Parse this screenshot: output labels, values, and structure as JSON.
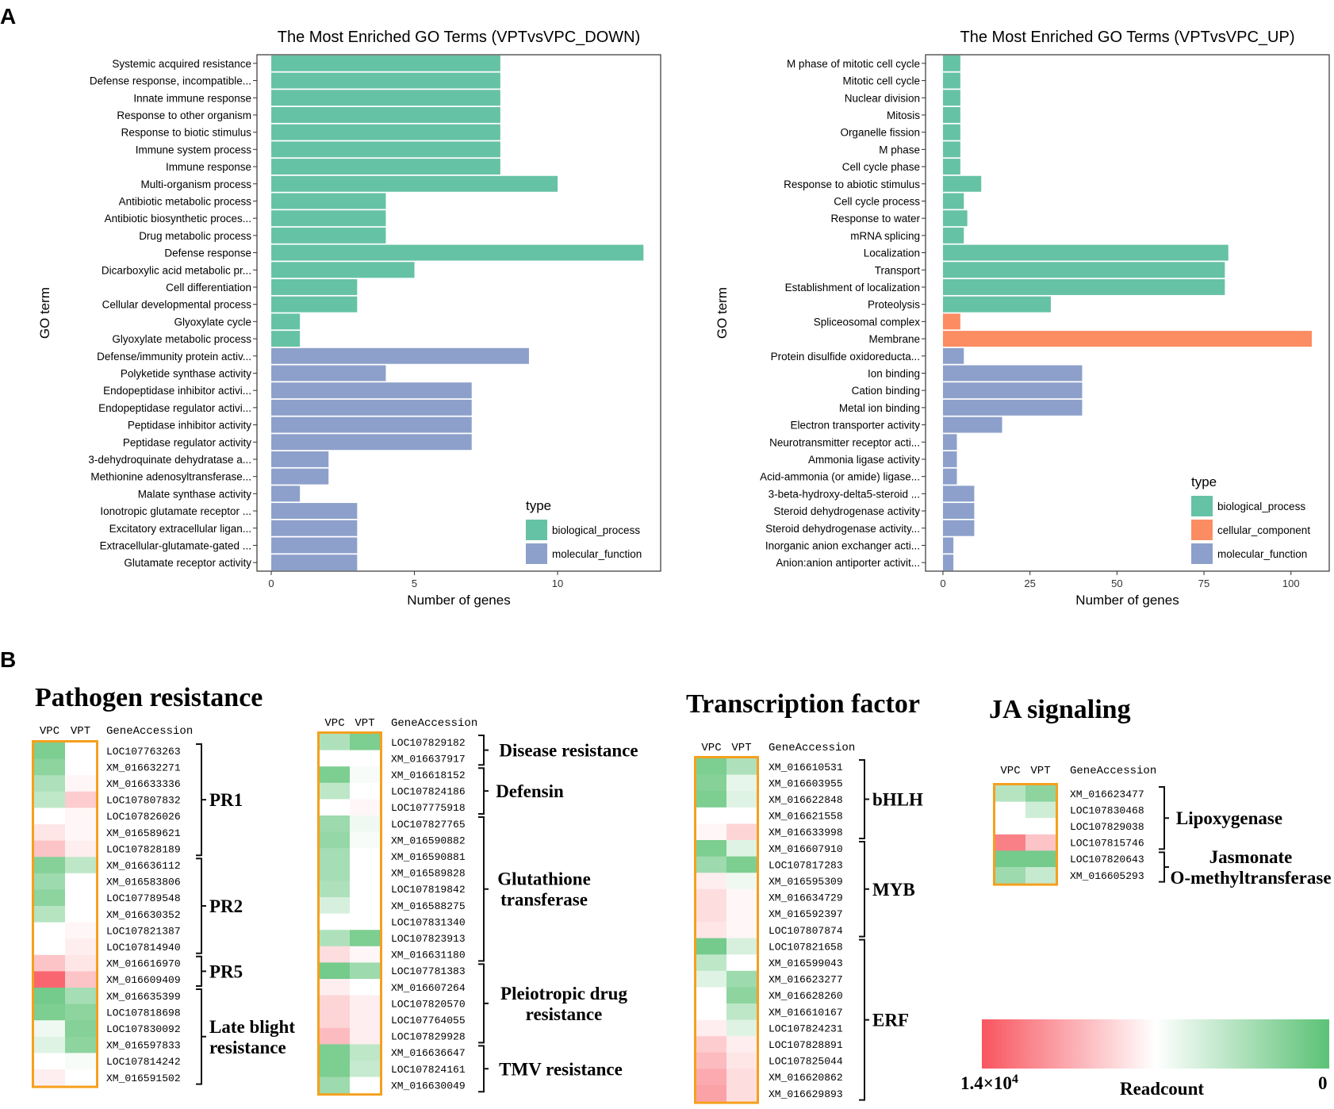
{
  "panel_labels": {
    "a": "A",
    "b": "B"
  },
  "colors": {
    "biological_process": "#66c2a5",
    "cellular_component": "#fc8d62",
    "molecular_function": "#8da0cb",
    "heat_high": "#f8555f",
    "heat_mid": "#ffffff",
    "heat_low": "#5cc276",
    "box": "#f5a01e"
  },
  "chart_data": [
    {
      "type": "bar",
      "orientation": "horizontal",
      "title": "The Most Enriched GO Terms (VPTvsVPC_DOWN)",
      "xlabel": "Number of genes",
      "ylabel": "GO term",
      "xlim": [
        -0.5,
        13.6
      ],
      "xticks": [
        0,
        5,
        10
      ],
      "legend": {
        "title": "type",
        "placement": "bottom-right",
        "entries": [
          "biological_process",
          "molecular_function"
        ]
      },
      "categories": [
        "Systemic acquired resistance",
        "Defense response, incompatible...",
        "Innate immune response",
        "Response to other organism",
        "Response to biotic stimulus",
        "Immune system process",
        "Immune response",
        "Multi-organism process",
        "Antibiotic metabolic process",
        "Antibiotic biosynthetic proces...",
        "Drug metabolic process",
        "Defense response",
        "Dicarboxylic acid metabolic pr...",
        "Cell differentiation",
        "Cellular developmental process",
        "Glyoxylate cycle",
        "Glyoxylate metabolic process",
        "Defense/immunity protein activ...",
        "Polyketide synthase activity",
        "Endopeptidase inhibitor activi...",
        "Endopeptidase regulator activi...",
        "Peptidase inhibitor activity",
        "Peptidase regulator activity",
        "3-dehydroquinate dehydratase a...",
        "Methionine adenosyltransferase...",
        "Malate synthase activity",
        "Ionotropic glutamate receptor ...",
        "Excitatory extracellular ligan...",
        "Extracellular-glutamate-gated ...",
        "Glutamate receptor activity"
      ],
      "values": [
        8,
        8,
        8,
        8,
        8,
        8,
        8,
        10,
        4,
        4,
        4,
        13,
        5,
        3,
        3,
        1,
        1,
        9,
        4,
        7,
        7,
        7,
        7,
        2,
        2,
        1,
        3,
        3,
        3,
        3
      ],
      "types": [
        "biological_process",
        "biological_process",
        "biological_process",
        "biological_process",
        "biological_process",
        "biological_process",
        "biological_process",
        "biological_process",
        "biological_process",
        "biological_process",
        "biological_process",
        "biological_process",
        "biological_process",
        "biological_process",
        "biological_process",
        "biological_process",
        "biological_process",
        "molecular_function",
        "molecular_function",
        "molecular_function",
        "molecular_function",
        "molecular_function",
        "molecular_function",
        "molecular_function",
        "molecular_function",
        "molecular_function",
        "molecular_function",
        "molecular_function",
        "molecular_function",
        "molecular_function"
      ]
    },
    {
      "type": "bar",
      "orientation": "horizontal",
      "title": "The Most Enriched GO Terms (VPTvsVPC_UP)",
      "xlabel": "Number of genes",
      "ylabel": "GO term",
      "xlim": [
        -5,
        111
      ],
      "xticks": [
        0,
        25,
        50,
        75,
        100
      ],
      "legend": {
        "title": "type",
        "placement": "bottom-right",
        "entries": [
          "biological_process",
          "cellular_component",
          "molecular_function"
        ]
      },
      "categories": [
        "M phase of mitotic cell cycle",
        "Mitotic cell cycle",
        "Nuclear division",
        "Mitosis",
        "Organelle fission",
        "M phase",
        "Cell cycle phase",
        "Response to abiotic stimulus",
        "Cell cycle process",
        "Response to water",
        "mRNA splicing",
        "Localization",
        "Transport",
        "Establishment of localization",
        "Proteolysis",
        "Spliceosomal complex",
        "Membrane",
        "Protein disulfide oxidoreducta...",
        "Ion binding",
        "Cation binding",
        "Metal ion binding",
        "Electron transporter activity",
        "Neurotransmitter receptor acti...",
        "Ammonia ligase activity",
        "Acid-ammonia (or amide) ligase...",
        "3-beta-hydroxy-delta5-steroid ...",
        "Steroid dehydrogenase activity",
        "Steroid dehydrogenase activity...",
        "Inorganic anion exchanger acti...",
        "Anion:anion antiporter activit..."
      ],
      "values": [
        5,
        5,
        5,
        5,
        5,
        5,
        5,
        11,
        6,
        7,
        6,
        82,
        81,
        81,
        31,
        5,
        106,
        6,
        40,
        40,
        40,
        17,
        4,
        4,
        4,
        9,
        9,
        9,
        3,
        3
      ],
      "types": [
        "biological_process",
        "biological_process",
        "biological_process",
        "biological_process",
        "biological_process",
        "biological_process",
        "biological_process",
        "biological_process",
        "biological_process",
        "biological_process",
        "biological_process",
        "biological_process",
        "biological_process",
        "biological_process",
        "biological_process",
        "cellular_component",
        "cellular_component",
        "molecular_function",
        "molecular_function",
        "molecular_function",
        "molecular_function",
        "molecular_function",
        "molecular_function",
        "molecular_function",
        "molecular_function",
        "molecular_function",
        "molecular_function",
        "molecular_function",
        "molecular_function",
        "molecular_function"
      ]
    },
    {
      "type": "heatmap",
      "title": "Pathogen resistance",
      "columns": [
        "VPC",
        "VPT"
      ],
      "accession_header": "GeneAccession",
      "value_note": "signed intensity: positive = green (low readcount), negative = red (high readcount)",
      "rows": [
        {
          "gene": "LOC107763263",
          "vpc": 0.8,
          "vpt": 0.0
        },
        {
          "gene": "XM_016632271",
          "vpc": 0.7,
          "vpt": 0.0
        },
        {
          "gene": "XM_016633336",
          "vpc": 0.5,
          "vpt": -0.05
        },
        {
          "gene": "LOC107807832",
          "vpc": 0.4,
          "vpt": -0.3
        },
        {
          "gene": "LOC107826026",
          "vpc": 0.0,
          "vpt": -0.05
        },
        {
          "gene": "XM_016589621",
          "vpc": -0.15,
          "vpt": -0.05
        },
        {
          "gene": "LOC107828189",
          "vpc": -0.35,
          "vpt": -0.1
        },
        {
          "gene": "XM_016636112",
          "vpc": 0.75,
          "vpt": 0.4
        },
        {
          "gene": "XM_016583806",
          "vpc": 0.6,
          "vpt": 0.0
        },
        {
          "gene": "LOC107789548",
          "vpc": 0.7,
          "vpt": 0.0
        },
        {
          "gene": "XM_016630352",
          "vpc": 0.45,
          "vpt": 0.0
        },
        {
          "gene": "LOC107821387",
          "vpc": 0.0,
          "vpt": -0.05
        },
        {
          "gene": "LOC107814940",
          "vpc": 0.0,
          "vpt": -0.1
        },
        {
          "gene": "XM_016616970",
          "vpc": -0.35,
          "vpt": -0.15
        },
        {
          "gene": "XM_016609409",
          "vpc": -0.9,
          "vpt": -0.35
        },
        {
          "gene": "XM_016635399",
          "vpc": 0.85,
          "vpt": 0.55
        },
        {
          "gene": "LOC107818698",
          "vpc": 0.8,
          "vpt": 0.7
        },
        {
          "gene": "LOC107830092",
          "vpc": 0.1,
          "vpt": 0.75
        },
        {
          "gene": "XM_016597833",
          "vpc": 0.2,
          "vpt": 0.7
        },
        {
          "gene": "LOC107814242",
          "vpc": 0.0,
          "vpt": 0.05
        },
        {
          "gene": "XM_016591502",
          "vpc": -0.1,
          "vpt": 0.0
        }
      ],
      "groups": [
        {
          "label": [
            "PR1"
          ],
          "start": 0,
          "end": 6
        },
        {
          "label": [
            "PR2"
          ],
          "start": 7,
          "end": 12
        },
        {
          "label": [
            "PR5"
          ],
          "start": 13,
          "end": 14
        },
        {
          "label": [
            "Late blight",
            "resistance"
          ],
          "start": 15,
          "end": 20
        }
      ]
    },
    {
      "type": "heatmap",
      "title": "",
      "columns": [
        "VPC",
        "VPT"
      ],
      "accession_header": "GeneAccession",
      "rows": [
        {
          "gene": "LOC107829182",
          "vpc": 0.5,
          "vpt": 0.8
        },
        {
          "gene": "XM_016637917",
          "vpc": 0.0,
          "vpt": 0.0
        },
        {
          "gene": "XM_016618152",
          "vpc": 0.8,
          "vpt": 0.05
        },
        {
          "gene": "LOC107824186",
          "vpc": 0.4,
          "vpt": 0.0
        },
        {
          "gene": "LOC107775918",
          "vpc": 0.0,
          "vpt": -0.05
        },
        {
          "gene": "LOC107827765",
          "vpc": 0.6,
          "vpt": 0.1
        },
        {
          "gene": "XM_016590882",
          "vpc": 0.65,
          "vpt": 0.05
        },
        {
          "gene": "XM_016590881",
          "vpc": 0.55,
          "vpt": 0.0
        },
        {
          "gene": "XM_016589828",
          "vpc": 0.55,
          "vpt": 0.0
        },
        {
          "gene": "LOC107819842",
          "vpc": 0.5,
          "vpt": 0.0
        },
        {
          "gene": "XM_016588275",
          "vpc": 0.25,
          "vpt": 0.0
        },
        {
          "gene": "LOC107831340",
          "vpc": 0.0,
          "vpt": 0.0
        },
        {
          "gene": "LOC107823913",
          "vpc": 0.5,
          "vpt": 0.8
        },
        {
          "gene": "XM_016631180",
          "vpc": -0.2,
          "vpt": -0.05
        },
        {
          "gene": "LOC107781383",
          "vpc": 0.85,
          "vpt": 0.6
        },
        {
          "gene": "XM_016607264",
          "vpc": -0.1,
          "vpt": 0.0
        },
        {
          "gene": "LOC107820570",
          "vpc": -0.25,
          "vpt": -0.1
        },
        {
          "gene": "LOC107764055",
          "vpc": -0.25,
          "vpt": -0.1
        },
        {
          "gene": "LOC107829928",
          "vpc": -0.4,
          "vpt": -0.1
        },
        {
          "gene": "XM_016636647",
          "vpc": 0.8,
          "vpt": 0.4
        },
        {
          "gene": "LOC107824161",
          "vpc": 0.8,
          "vpt": 0.35
        },
        {
          "gene": "XM_016630049",
          "vpc": 0.6,
          "vpt": 0.0
        }
      ],
      "groups": [
        {
          "label": [
            "Disease resistance"
          ],
          "start": 0,
          "end": 1
        },
        {
          "label": [
            "Defensin"
          ],
          "start": 2,
          "end": 4
        },
        {
          "label": [
            "Glutathione",
            "transferase"
          ],
          "start": 5,
          "end": 13
        },
        {
          "label": [
            "Pleiotropic drug",
            "resistance"
          ],
          "start": 14,
          "end": 18
        },
        {
          "label": [
            "TMV resistance"
          ],
          "start": 19,
          "end": 21
        }
      ]
    },
    {
      "type": "heatmap",
      "title": "Transcription factor",
      "columns": [
        "VPC",
        "VPT"
      ],
      "accession_header": "GeneAccession",
      "rows": [
        {
          "gene": "XM_016610531",
          "vpc": 0.8,
          "vpt": 0.5
        },
        {
          "gene": "XM_016603955",
          "vpc": 0.75,
          "vpt": 0.15
        },
        {
          "gene": "XM_016622848",
          "vpc": 0.8,
          "vpt": 0.2
        },
        {
          "gene": "XM_016621558",
          "vpc": 0.0,
          "vpt": 0.0
        },
        {
          "gene": "XM_016633998",
          "vpc": -0.05,
          "vpt": -0.25
        },
        {
          "gene": "XM_016607910",
          "vpc": 0.8,
          "vpt": 0.2
        },
        {
          "gene": "LOC107817283",
          "vpc": 0.6,
          "vpt": 0.8
        },
        {
          "gene": "XM_016595309",
          "vpc": -0.1,
          "vpt": 0.1
        },
        {
          "gene": "XM_016634729",
          "vpc": -0.2,
          "vpt": -0.05
        },
        {
          "gene": "XM_016592397",
          "vpc": -0.2,
          "vpt": -0.05
        },
        {
          "gene": "LOC107807874",
          "vpc": -0.15,
          "vpt": -0.05
        },
        {
          "gene": "LOC107821658",
          "vpc": 0.85,
          "vpt": 0.25
        },
        {
          "gene": "XM_016599043",
          "vpc": 0.4,
          "vpt": 0.0
        },
        {
          "gene": "XM_016623277",
          "vpc": 0.2,
          "vpt": 0.6
        },
        {
          "gene": "XM_016628260",
          "vpc": 0.0,
          "vpt": 0.7
        },
        {
          "gene": "XM_016610167",
          "vpc": 0.0,
          "vpt": 0.4
        },
        {
          "gene": "LOC107824231",
          "vpc": -0.1,
          "vpt": 0.2
        },
        {
          "gene": "LOC107828891",
          "vpc": -0.3,
          "vpt": -0.1
        },
        {
          "gene": "LOC107825044",
          "vpc": -0.4,
          "vpt": -0.15
        },
        {
          "gene": "XM_016620862",
          "vpc": -0.5,
          "vpt": -0.2
        },
        {
          "gene": "XM_016629893",
          "vpc": -0.55,
          "vpt": -0.2
        }
      ],
      "groups": [
        {
          "label": [
            "bHLH"
          ],
          "start": 0,
          "end": 4
        },
        {
          "label": [
            "MYB"
          ],
          "start": 5,
          "end": 10
        },
        {
          "label": [
            "ERF"
          ],
          "start": 11,
          "end": 20
        }
      ]
    },
    {
      "type": "heatmap",
      "title": "JA signaling",
      "columns": [
        "VPC",
        "VPT"
      ],
      "accession_header": "GeneAccession",
      "rows": [
        {
          "gene": "XM_016623477",
          "vpc": 0.45,
          "vpt": 0.7
        },
        {
          "gene": "LOC107830468",
          "vpc": 0.0,
          "vpt": 0.3
        },
        {
          "gene": "LOC107829038",
          "vpc": 0.0,
          "vpt": 0.0
        },
        {
          "gene": "LOC107815746",
          "vpc": -0.75,
          "vpt": -0.35
        },
        {
          "gene": "LOC107820643",
          "vpc": 0.85,
          "vpt": 0.85
        },
        {
          "gene": "XM_016605293",
          "vpc": 0.6,
          "vpt": 0.35
        }
      ],
      "groups": [
        {
          "label": [
            "Lipoxygenase"
          ],
          "start": 0,
          "end": 3
        },
        {
          "label": [
            "Jasmonate",
            "O-methyltransferase"
          ],
          "start": 4,
          "end": 5
        }
      ]
    }
  ],
  "colorbar": {
    "title": "Readcount",
    "high_label": "1.4×10",
    "high_exponent": "4",
    "low_label": "0"
  }
}
